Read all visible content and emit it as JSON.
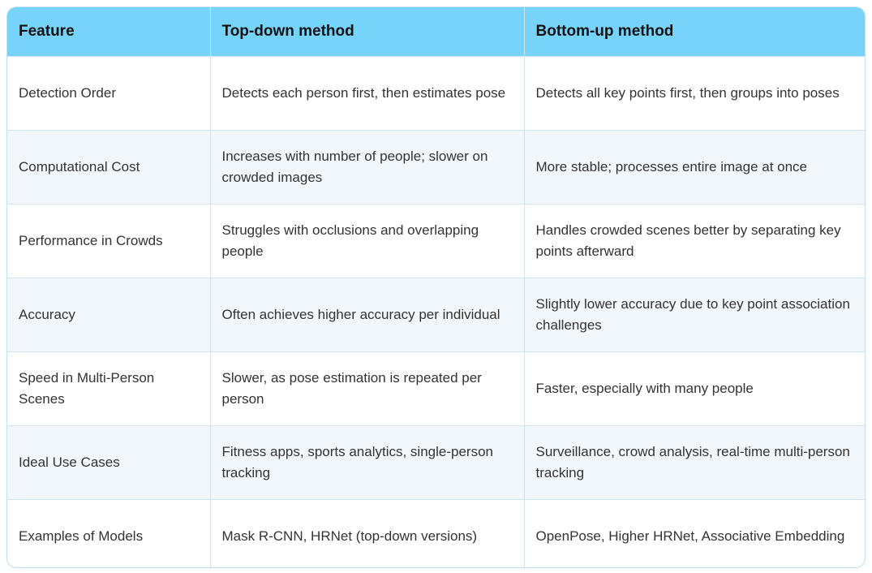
{
  "table": {
    "header": [
      "Feature",
      "Top-down method",
      "Bottom-up method"
    ],
    "rows": [
      [
        "Detection Order",
        "Detects each person first, then estimates pose",
        "Detects all key points first, then groups into poses"
      ],
      [
        "Computational Cost",
        "Increases with number of people; slower on crowded images",
        "More stable; processes entire image at once"
      ],
      [
        "Performance in Crowds",
        "Struggles with occlusions and overlapping people",
        "Handles crowded scenes better by separating key points afterward"
      ],
      [
        "Accuracy",
        "Often achieves higher accuracy per individual",
        "Slightly lower accuracy due to key point association challenges"
      ],
      [
        "Speed in Multi-Person Scenes",
        "Slower, as pose estimation is repeated per person",
        "Faster, especially with many people"
      ],
      [
        "Ideal Use Cases",
        "Fitness apps, sports analytics, single-person tracking",
        "Surveillance, crowd analysis, real-time multi-person tracking"
      ],
      [
        "Examples of Models",
        "Mask R-CNN, HRNet (top-down versions)",
        "OpenPose, Higher HRNet, Associative Embedding"
      ]
    ]
  }
}
